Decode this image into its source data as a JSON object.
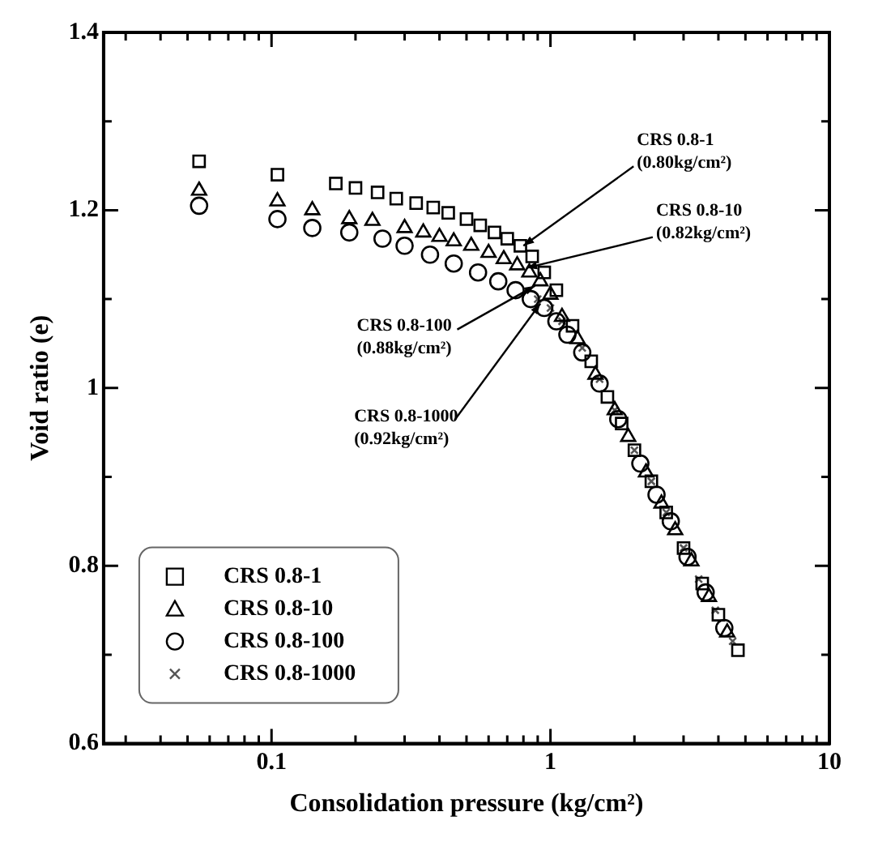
{
  "chart_data": {
    "type": "scatter",
    "xlabel": "Consolidation pressure (kg/cm²)",
    "ylabel": "Void ratio (e)",
    "log": "x",
    "grid": false,
    "legend": "bottom left",
    "xlim": [
      0.025,
      10
    ],
    "xticks": [
      {
        "value": 0.03,
        "label": null
      },
      {
        "value": 0.04,
        "label": null
      },
      {
        "value": 0.05,
        "label": null
      },
      {
        "value": 0.06,
        "label": null
      },
      {
        "value": 0.07,
        "label": null
      },
      {
        "value": 0.08,
        "label": null
      },
      {
        "value": 0.09,
        "label": null
      },
      0.1,
      {
        "value": 0.2,
        "label": null
      },
      {
        "value": 0.3,
        "label": null
      },
      {
        "value": 0.4,
        "label": null
      },
      {
        "value": 0.5,
        "label": null
      },
      {
        "value": 0.6,
        "label": null
      },
      {
        "value": 0.7,
        "label": null
      },
      {
        "value": 0.8,
        "label": null
      },
      {
        "value": 0.9,
        "label": null
      },
      1,
      {
        "value": 2,
        "label": null
      },
      {
        "value": 3,
        "label": null
      },
      {
        "value": 4,
        "label": null
      },
      {
        "value": 5,
        "label": null
      },
      {
        "value": 6,
        "label": null
      },
      {
        "value": 7,
        "label": null
      },
      {
        "value": 8,
        "label": null
      },
      {
        "value": 9,
        "label": null
      },
      10
    ],
    "ylim": [
      0.6,
      1.4
    ],
    "yticks": [
      0.6,
      {
        "value": 0.7,
        "label": null
      },
      0.8,
      {
        "value": 0.9,
        "label": null
      },
      1,
      {
        "value": 1.1,
        "label": null
      },
      1.2,
      {
        "value": 1.3,
        "label": null
      },
      1.4
    ],
    "series": [
      {
        "name": "CRS 0.8-1",
        "color": "#000000",
        "marker": "square",
        "x": [
          0.055,
          0.105,
          0.17,
          0.2,
          0.24,
          0.28,
          0.33,
          0.38,
          0.43,
          0.5,
          0.56,
          0.63,
          0.7,
          0.78,
          0.86,
          0.95,
          1.05,
          1.2,
          1.4,
          1.6,
          1.8,
          2.0,
          2.3,
          2.6,
          3.0,
          3.5,
          4.0,
          4.7
        ],
        "values": [
          1.255,
          1.24,
          1.23,
          1.225,
          1.22,
          1.213,
          1.208,
          1.203,
          1.197,
          1.19,
          1.183,
          1.175,
          1.168,
          1.16,
          1.148,
          1.13,
          1.11,
          1.07,
          1.03,
          0.99,
          0.96,
          0.93,
          0.895,
          0.86,
          0.82,
          0.78,
          0.745,
          0.705
        ]
      },
      {
        "name": "CRS 0.8-10",
        "color": "#000000",
        "marker": "triangle",
        "x": [
          0.055,
          0.105,
          0.14,
          0.19,
          0.23,
          0.3,
          0.35,
          0.4,
          0.45,
          0.52,
          0.6,
          0.68,
          0.76,
          0.84,
          0.92,
          1.0,
          1.1,
          1.25,
          1.45,
          1.7,
          1.9,
          2.2,
          2.5,
          2.8,
          3.2,
          3.7,
          4.3
        ],
        "values": [
          1.222,
          1.21,
          1.2,
          1.19,
          1.188,
          1.18,
          1.175,
          1.17,
          1.165,
          1.16,
          1.152,
          1.145,
          1.138,
          1.13,
          1.12,
          1.105,
          1.08,
          1.055,
          1.015,
          0.975,
          0.945,
          0.905,
          0.87,
          0.84,
          0.805,
          0.765,
          0.725
        ]
      },
      {
        "name": "CRS 0.8-100",
        "color": "#000000",
        "marker": "circle",
        "x": [
          0.055,
          0.105,
          0.14,
          0.19,
          0.25,
          0.3,
          0.37,
          0.45,
          0.55,
          0.65,
          0.75,
          0.85,
          0.95,
          1.05,
          1.15,
          1.3,
          1.5,
          1.75,
          2.1,
          2.4,
          2.7,
          3.1,
          3.6,
          4.2
        ],
        "values": [
          1.205,
          1.19,
          1.18,
          1.175,
          1.168,
          1.16,
          1.15,
          1.14,
          1.13,
          1.12,
          1.11,
          1.1,
          1.09,
          1.075,
          1.06,
          1.04,
          1.005,
          0.965,
          0.915,
          0.88,
          0.85,
          0.81,
          0.77,
          0.73
        ]
      },
      {
        "name": "CRS 0.8-1000",
        "color": "#555555",
        "marker": "cross",
        "x": [
          0.9,
          1.0,
          1.1,
          1.3,
          1.5,
          1.7,
          2.0,
          2.3,
          2.6,
          3.0,
          3.4,
          3.9,
          4.5
        ],
        "values": [
          1.1,
          1.09,
          1.075,
          1.045,
          1.01,
          0.975,
          0.93,
          0.895,
          0.86,
          0.82,
          0.785,
          0.75,
          0.715
        ]
      }
    ],
    "annotations": [
      {
        "text": "CRS 0.8-1\n(0.80kg/cm²)",
        "x": 0.8,
        "y": 1.16
      },
      {
        "text": "CRS 0.8-10\n(0.82kg/cm²)",
        "x": 0.82,
        "y": 1.135
      },
      {
        "text": "CRS 0.8-100\n(0.88kg/cm²)",
        "x": 0.88,
        "y": 1.115
      },
      {
        "text": "CRS 0.8-1000\n(0.92kg/cm²)",
        "x": 0.92,
        "y": 1.095
      }
    ]
  }
}
